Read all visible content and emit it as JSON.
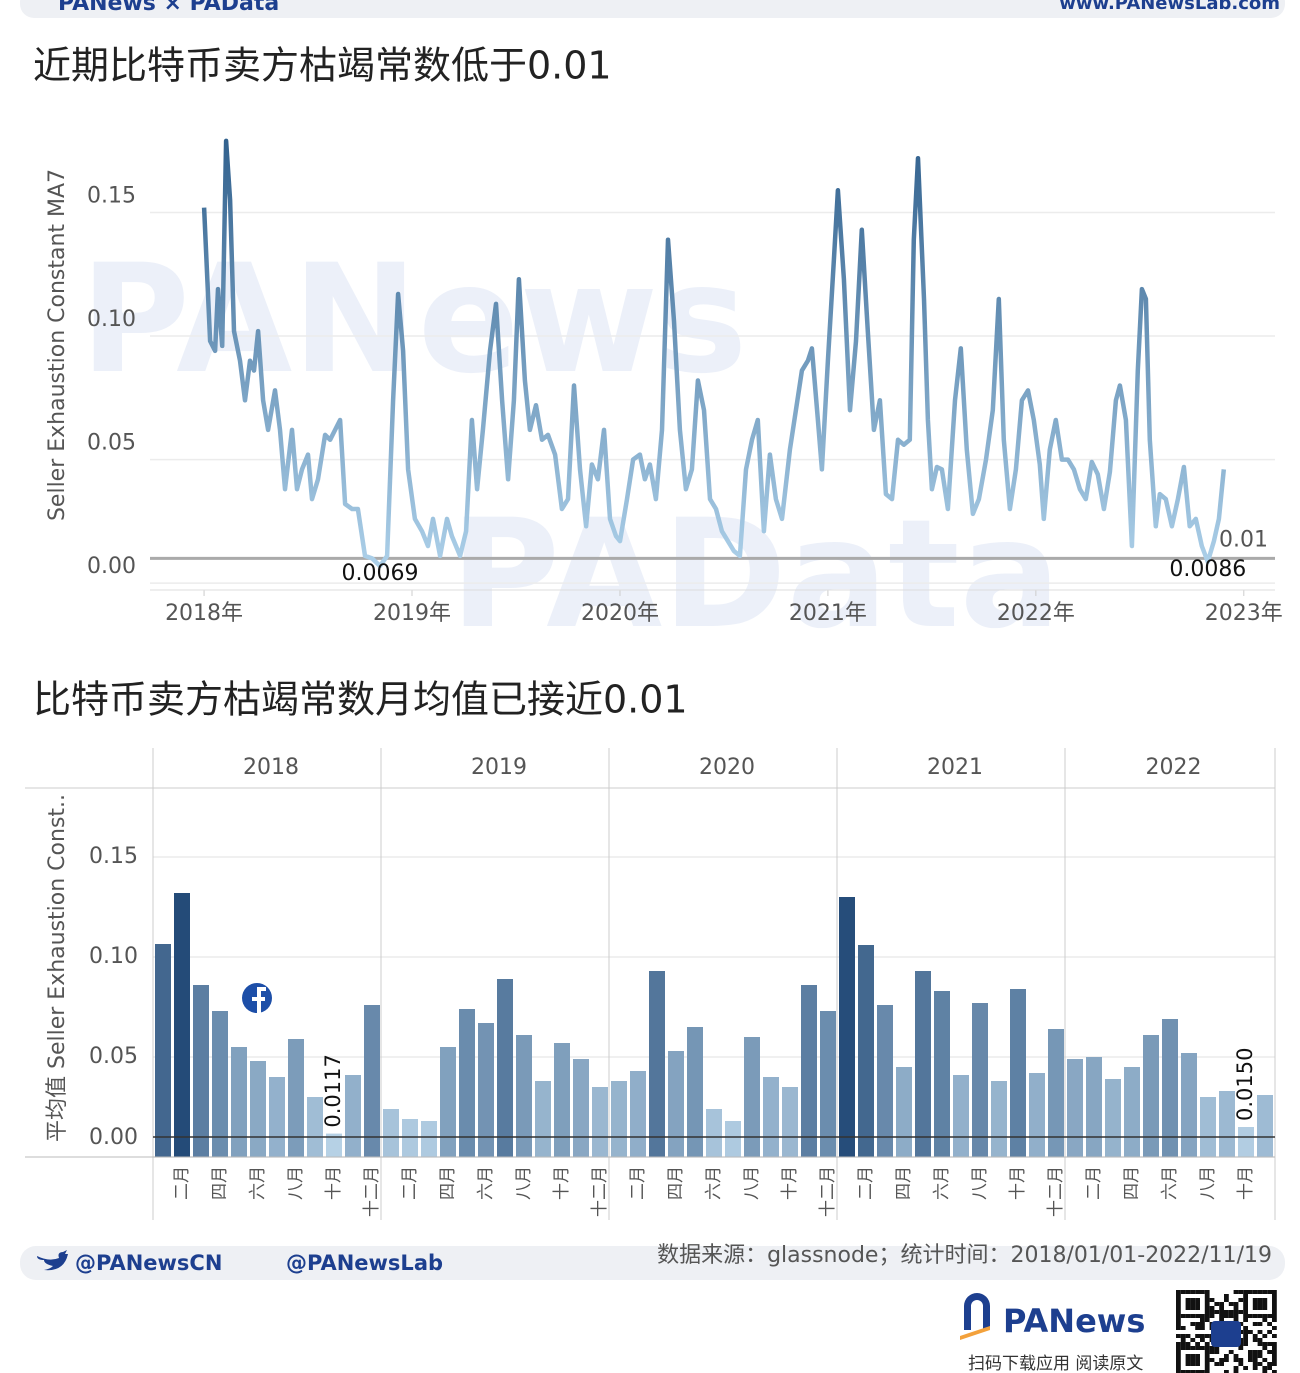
{
  "header": {
    "brand": "PANews × PAData",
    "url": "www.PANewsLab.com"
  },
  "watermarks": [
    "PANews",
    "PAData"
  ],
  "chart_data": [
    {
      "type": "line",
      "title": "近期比特币卖方枯竭常数低于0.01",
      "y_label": "Seller Exhaustion Constant MA7",
      "x": [
        2018.0,
        2018.029,
        2018.053,
        2018.067,
        2018.087,
        2018.106,
        2018.125,
        2018.144,
        2018.173,
        2018.197,
        2018.221,
        2018.24,
        2018.26,
        2018.284,
        2018.308,
        2018.341,
        2018.365,
        2018.389,
        2018.423,
        2018.447,
        2018.471,
        2018.5,
        2018.519,
        2018.548,
        2018.582,
        2018.606,
        2018.63,
        2018.654,
        2018.678,
        2018.712,
        2018.74,
        2018.774,
        2018.808,
        2018.846,
        2018.88,
        2018.909,
        2018.933,
        2018.957,
        2018.981,
        2019.014,
        2019.048,
        2019.077,
        2019.101,
        2019.135,
        2019.168,
        2019.192,
        2019.231,
        2019.26,
        2019.288,
        2019.313,
        2019.341,
        2019.375,
        2019.404,
        2019.433,
        2019.462,
        2019.49,
        2019.514,
        2019.543,
        2019.567,
        2019.596,
        2019.625,
        2019.654,
        2019.688,
        2019.721,
        2019.75,
        2019.779,
        2019.808,
        2019.837,
        2019.865,
        2019.894,
        2019.923,
        2019.952,
        2019.981,
        2020.0,
        2020.034,
        2020.063,
        2020.096,
        2020.12,
        2020.144,
        2020.173,
        2020.202,
        2020.231,
        2020.26,
        2020.288,
        2020.317,
        2020.346,
        2020.375,
        2020.404,
        2020.433,
        2020.462,
        2020.49,
        2020.519,
        2020.548,
        2020.577,
        2020.606,
        2020.635,
        2020.663,
        2020.692,
        2020.721,
        2020.75,
        2020.779,
        2020.817,
        2020.846,
        2020.875,
        2020.904,
        2020.923,
        2020.952,
        2020.971,
        2021.0,
        2021.029,
        2021.048,
        2021.077,
        2021.106,
        2021.135,
        2021.163,
        2021.192,
        2021.221,
        2021.25,
        2021.279,
        2021.308,
        2021.337,
        2021.365,
        2021.394,
        2021.413,
        2021.433,
        2021.462,
        2021.481,
        2021.5,
        2021.524,
        2021.548,
        2021.577,
        2021.611,
        2021.639,
        2021.668,
        2021.697,
        2021.726,
        2021.76,
        2021.793,
        2021.822,
        2021.846,
        2021.875,
        2021.904,
        2021.933,
        2021.962,
        2021.99,
        2022.019,
        2022.038,
        2022.067,
        2022.096,
        2022.125,
        2022.154,
        2022.183,
        2022.212,
        2022.24,
        2022.269,
        2022.298,
        2022.327,
        2022.356,
        2022.385,
        2022.404,
        2022.433,
        2022.462,
        2022.49,
        2022.51,
        2022.529,
        2022.548,
        2022.577,
        2022.596,
        2022.625,
        2022.654,
        2022.683,
        2022.712,
        2022.74,
        2022.769,
        2022.798,
        2022.827,
        2022.856,
        2022.88,
        2022.904
      ],
      "values": [
        0.152,
        0.098,
        0.094,
        0.119,
        0.096,
        0.179,
        0.155,
        0.102,
        0.09,
        0.074,
        0.09,
        0.086,
        0.102,
        0.074,
        0.062,
        0.078,
        0.062,
        0.038,
        0.062,
        0.038,
        0.046,
        0.052,
        0.034,
        0.042,
        0.06,
        0.058,
        0.062,
        0.066,
        0.032,
        0.03,
        0.03,
        0.011,
        0.01,
        0.0069,
        0.011,
        0.074,
        0.117,
        0.094,
        0.046,
        0.026,
        0.021,
        0.015,
        0.026,
        0.011,
        0.026,
        0.019,
        0.011,
        0.021,
        0.066,
        0.038,
        0.062,
        0.094,
        0.113,
        0.074,
        0.042,
        0.074,
        0.123,
        0.082,
        0.062,
        0.072,
        0.058,
        0.06,
        0.052,
        0.03,
        0.034,
        0.08,
        0.046,
        0.023,
        0.048,
        0.042,
        0.062,
        0.026,
        0.019,
        0.017,
        0.034,
        0.05,
        0.052,
        0.042,
        0.048,
        0.034,
        0.062,
        0.139,
        0.106,
        0.062,
        0.038,
        0.046,
        0.082,
        0.07,
        0.034,
        0.03,
        0.021,
        0.017,
        0.013,
        0.011,
        0.046,
        0.058,
        0.066,
        0.021,
        0.052,
        0.034,
        0.026,
        0.054,
        0.07,
        0.086,
        0.09,
        0.095,
        0.066,
        0.046,
        0.09,
        0.131,
        0.159,
        0.123,
        0.07,
        0.098,
        0.143,
        0.102,
        0.062,
        0.074,
        0.036,
        0.034,
        0.058,
        0.056,
        0.058,
        0.139,
        0.172,
        0.115,
        0.066,
        0.038,
        0.047,
        0.046,
        0.03,
        0.074,
        0.095,
        0.054,
        0.028,
        0.034,
        0.05,
        0.07,
        0.115,
        0.058,
        0.03,
        0.046,
        0.074,
        0.078,
        0.066,
        0.048,
        0.026,
        0.054,
        0.066,
        0.05,
        0.05,
        0.046,
        0.038,
        0.034,
        0.049,
        0.044,
        0.03,
        0.045,
        0.074,
        0.08,
        0.066,
        0.015,
        0.086,
        0.119,
        0.115,
        0.058,
        0.023,
        0.036,
        0.034,
        0.023,
        0.034,
        0.047,
        0.023,
        0.026,
        0.015,
        0.0086,
        0.017,
        0.026,
        0.046
      ],
      "xlim": [
        2017.74,
        2023.15
      ],
      "xticks": [
        {
          "value": 2018,
          "label": "2018年"
        },
        {
          "value": 2019,
          "label": "2019年"
        },
        {
          "value": 2020,
          "label": "2020年"
        },
        {
          "value": 2021,
          "label": "2021年"
        },
        {
          "value": 2022,
          "label": "2022年"
        },
        {
          "value": 2023,
          "label": "2023年"
        }
      ],
      "ylim": [
        -0.0028,
        0.1915
      ],
      "yticks": [
        {
          "value": 0,
          "label": "0.00"
        },
        {
          "value": 0.05,
          "label": "0.05"
        },
        {
          "value": 0.1,
          "label": "0.10"
        },
        {
          "value": 0.15,
          "label": "0.15"
        }
      ],
      "reference_line": 0.01,
      "annotations": [
        {
          "x": 2018.846,
          "y": 0.0069
        },
        {
          "x": 2022.827,
          "y": 0.0086
        }
      ],
      "colors": [
        "#b3d6ee",
        "#2a5a88"
      ],
      "grid": true
    },
    {
      "type": "bar",
      "title": "比特币卖方枯竭常数月均值已接近0.01",
      "y_label": "平均值 Seller Exhaustion Const..",
      "ylim": [
        0,
        0.1845
      ],
      "yticks": [
        {
          "value": 0,
          "label": "0.00"
        },
        {
          "value": 0.05,
          "label": "0.05"
        },
        {
          "value": 0.1,
          "label": "0.10"
        },
        {
          "value": 0.15,
          "label": "0.15"
        }
      ],
      "reference_line": 0.01,
      "colors": [
        "#c4def0",
        "#1c4472"
      ],
      "grid": true,
      "facets": [
        {
          "label": "2018",
          "categories": [
            null,
            "二月",
            null,
            "四月",
            null,
            "六月",
            null,
            "八月",
            null,
            "十月",
            null,
            "十二月"
          ],
          "values": [
            0.1065,
            0.132,
            0.086,
            0.073,
            0.055,
            0.048,
            0.04,
            0.059,
            0.03,
            0.0117,
            0.041,
            0.076
          ],
          "value_labels": [
            null,
            null,
            null,
            null,
            null,
            null,
            null,
            null,
            null,
            "0.0117",
            null,
            null
          ]
        },
        {
          "label": "2019",
          "categories": [
            null,
            "二月",
            null,
            "四月",
            null,
            "六月",
            null,
            "八月",
            null,
            "十月",
            null,
            "十二月"
          ],
          "values": [
            0.024,
            0.019,
            0.018,
            0.055,
            0.074,
            0.067,
            0.089,
            0.061,
            0.038,
            0.057,
            0.049,
            0.035
          ]
        },
        {
          "label": "2020",
          "categories": [
            null,
            "二月",
            null,
            "四月",
            null,
            "六月",
            null,
            "八月",
            null,
            "十月",
            null,
            "十二月"
          ],
          "values": [
            0.038,
            0.043,
            0.093,
            0.053,
            0.065,
            0.024,
            0.018,
            0.06,
            0.04,
            0.035,
            0.086,
            0.073
          ]
        },
        {
          "label": "2021",
          "categories": [
            null,
            "二月",
            null,
            "四月",
            null,
            "六月",
            null,
            "八月",
            null,
            "十月",
            null,
            "十二月"
          ],
          "values": [
            0.13,
            0.106,
            0.076,
            0.045,
            0.093,
            0.083,
            0.041,
            0.077,
            0.038,
            0.084,
            0.042,
            0.064
          ]
        },
        {
          "label": "2022",
          "categories": [
            null,
            "二月",
            null,
            "四月",
            null,
            "六月",
            null,
            "八月",
            null,
            "十月",
            null
          ],
          "values": [
            0.049,
            0.05,
            0.039,
            0.045,
            0.061,
            0.069,
            0.052,
            0.03,
            0.033,
            0.015,
            0.031
          ],
          "value_labels": [
            null,
            null,
            null,
            null,
            null,
            null,
            null,
            null,
            null,
            "0.0150",
            null
          ]
        }
      ]
    }
  ],
  "footer": {
    "twitter": "@PANewsCN",
    "handle": "@PANewsLab",
    "source": "数据来源：glassnode；统计时间：2018/01/01-2022/11/19",
    "logo": "PANews",
    "qr_caption": "扫码下载应用  阅读原文"
  }
}
